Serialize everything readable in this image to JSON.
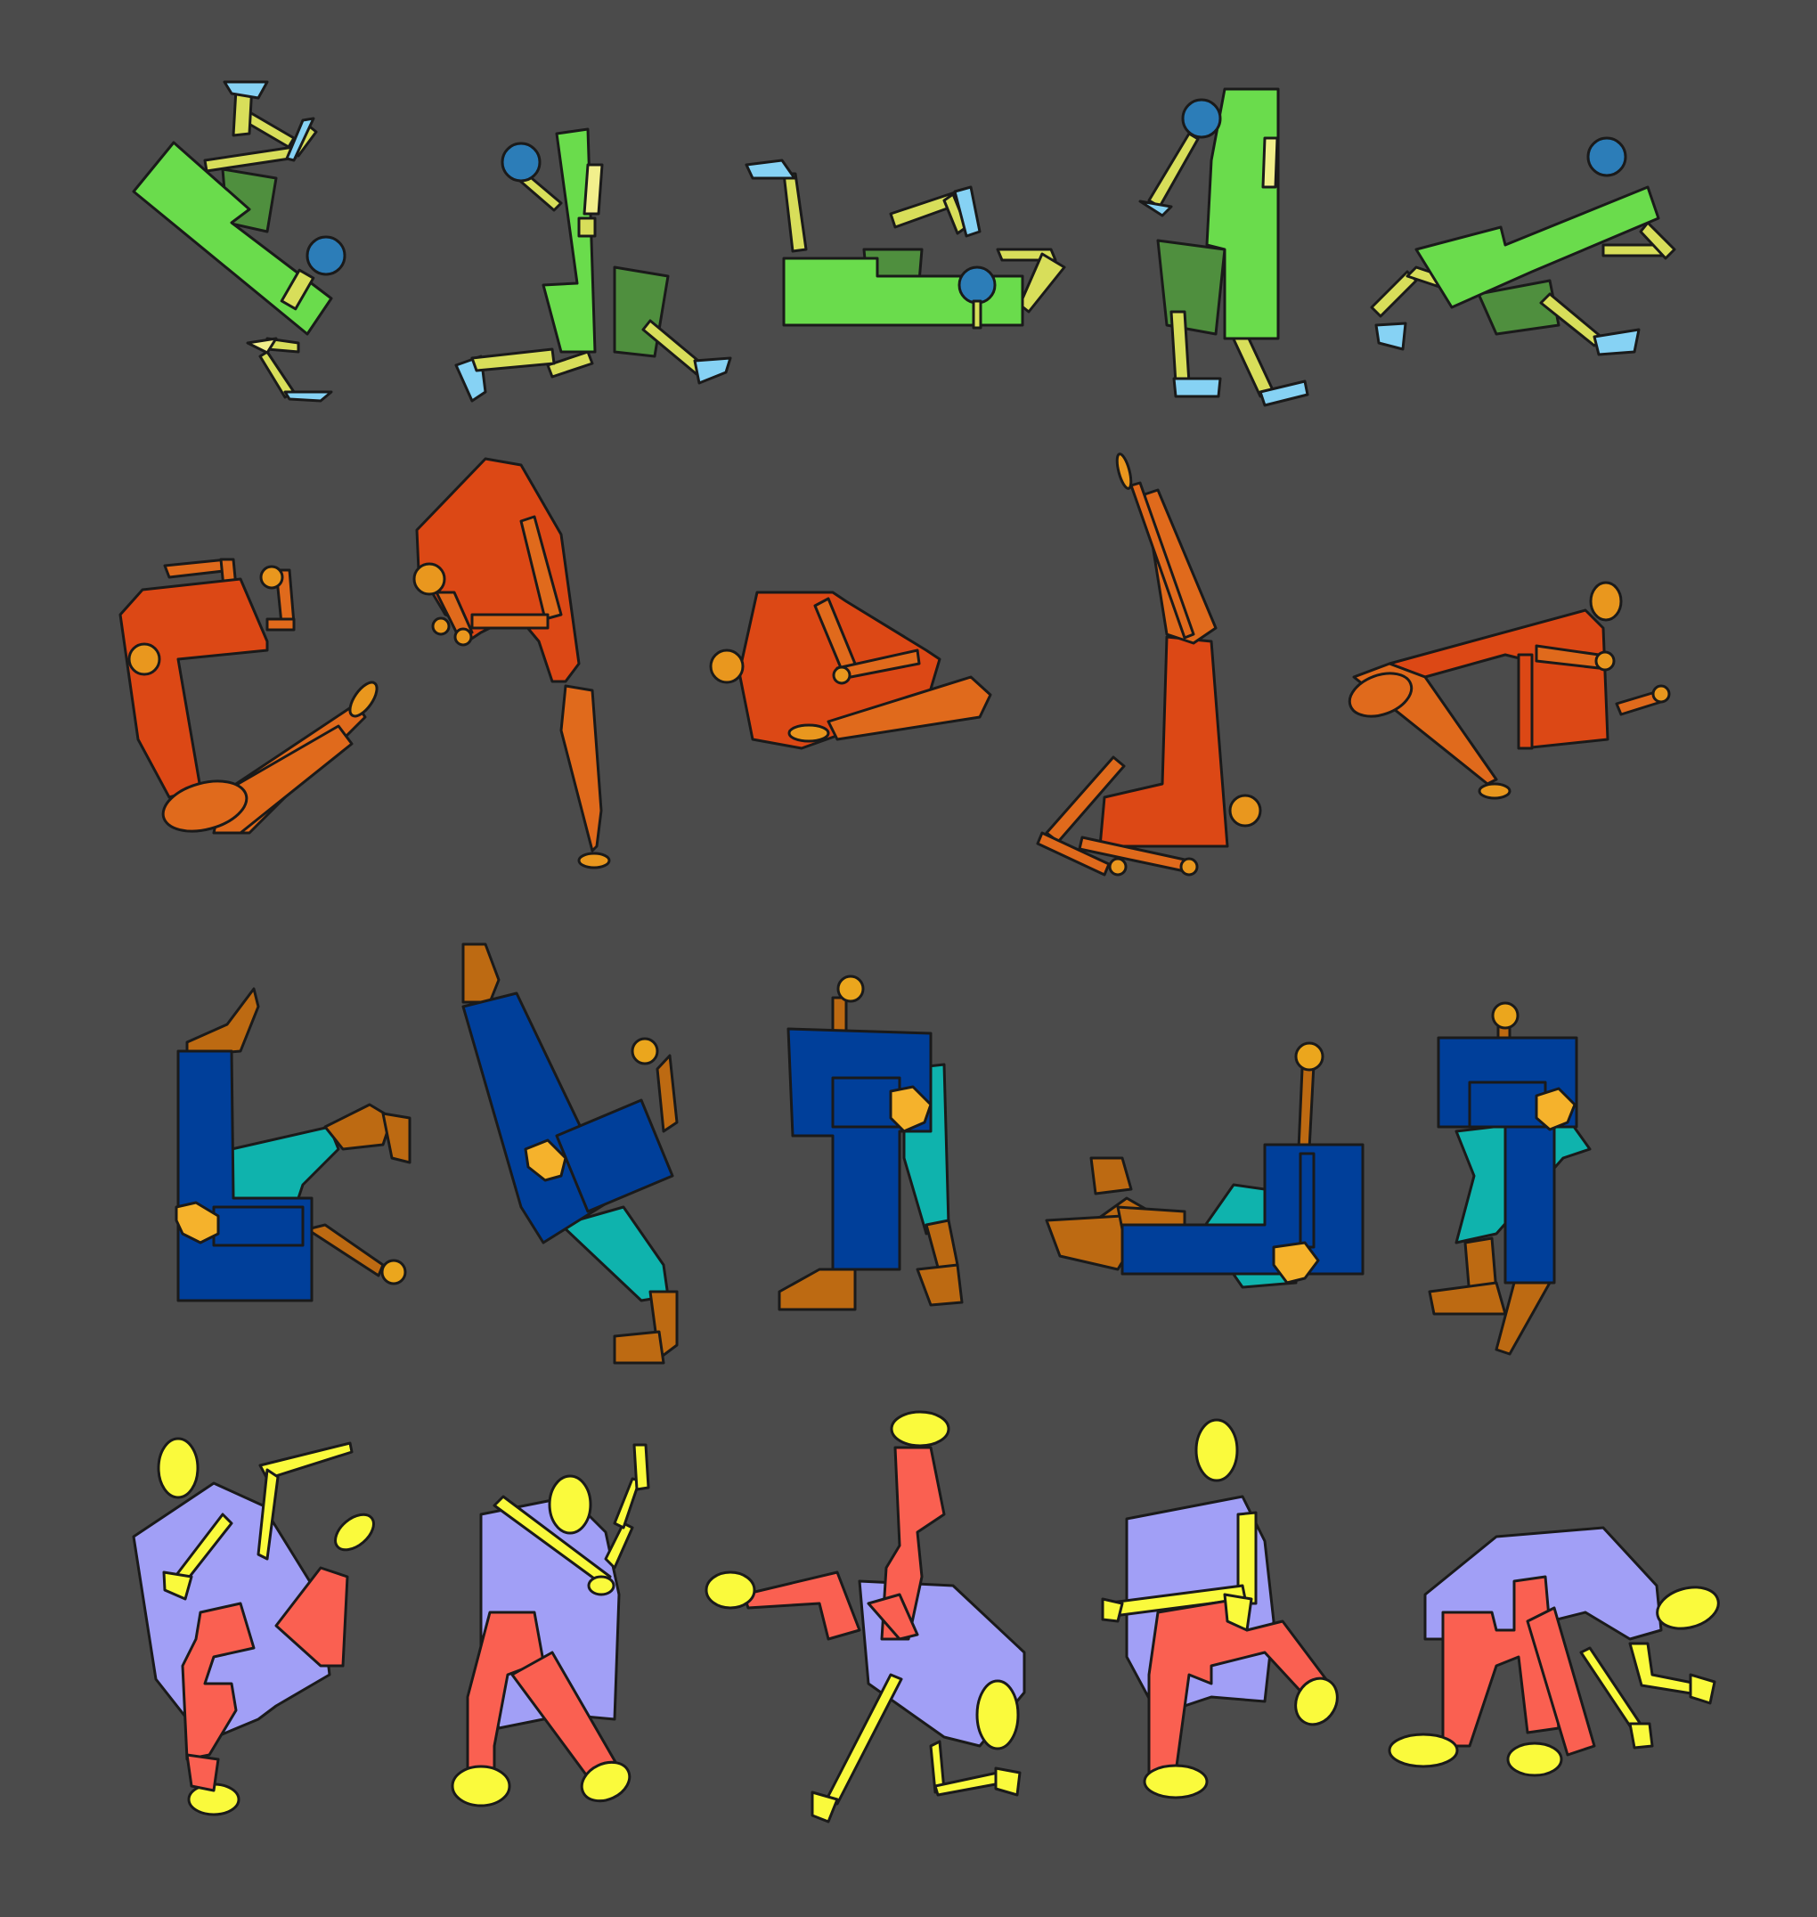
{
  "background": "#4b4b4b",
  "outline_color": "#1a1a1a",
  "rows": [
    {
      "name": "green-figures",
      "figure_count": 5,
      "colors": {
        "torso": "#6adc4c",
        "skirt": "#4f8f3e",
        "limbs": "#d8de5a",
        "feet": "#86d2f4",
        "head": "#2c7db8"
      }
    },
    {
      "name": "orange-figures",
      "figure_count": 5,
      "colors": {
        "torso": "#dc4815",
        "legs": "#e06a1c",
        "head": "#e9971e",
        "feet": "#e9971e"
      }
    },
    {
      "name": "blue-figures",
      "figure_count": 5,
      "colors": {
        "torso": "#003f9a",
        "pants": "#0fb3ad",
        "limbs": "#bd6a12",
        "head": "#eba61d",
        "hands": "#f5b22c"
      }
    },
    {
      "name": "lavender-figures",
      "figure_count": 5,
      "colors": {
        "torso": "#a19ff6",
        "legs": "#fa6051",
        "head": "#fafa3c",
        "arms": "#fafa3c",
        "feet": "#fafa3c"
      }
    }
  ]
}
